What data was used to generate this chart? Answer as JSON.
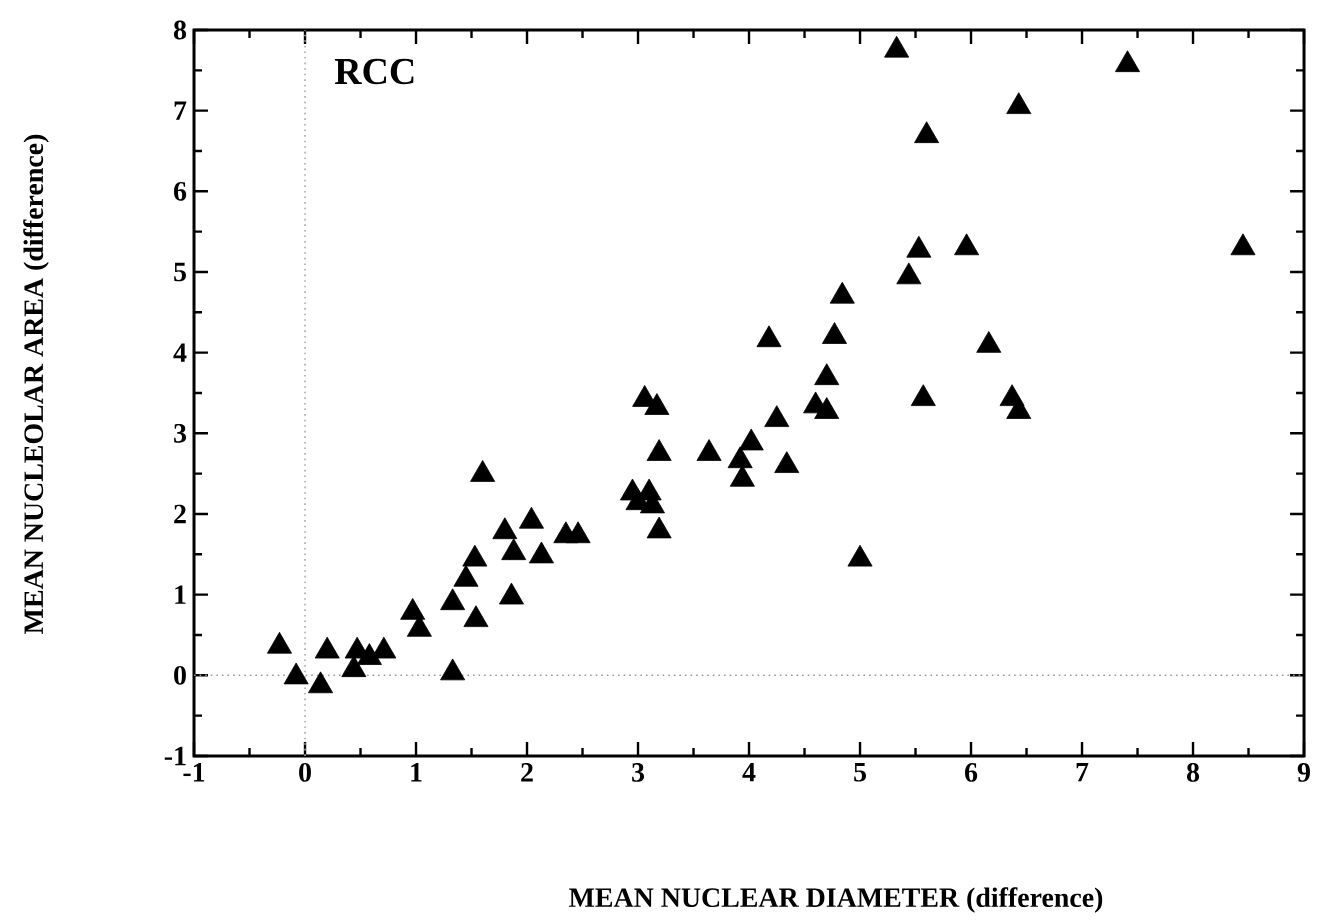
{
  "chart_data": {
    "type": "scatter",
    "xlabel": "MEAN NUCLEAR DIAMETER (difference)",
    "ylabel": "MEAN NUCLEOLAR AREA (difference)",
    "annotations": [
      "RCC"
    ],
    "xlim": [
      -1,
      9
    ],
    "ylim": [
      -1,
      8
    ],
    "xticks": [
      -1,
      0,
      1,
      2,
      3,
      4,
      5,
      6,
      7,
      8,
      9
    ],
    "yticks": [
      -1,
      0,
      1,
      2,
      3,
      4,
      5,
      6,
      7,
      8
    ],
    "ref_lines": [
      {
        "axis": "x",
        "value": 0,
        "line_style": "dotted",
        "color": "#a8a8a8"
      },
      {
        "axis": "y",
        "value": 0,
        "line_style": "dotted",
        "color": "#999999"
      }
    ],
    "marker": "triangle",
    "series": [
      {
        "color": "#000000",
        "x": [
          -0.23,
          -0.08,
          0.14,
          0.2,
          0.47,
          0.44,
          0.58,
          0.71,
          0.97,
          1.03,
          1.33,
          1.33,
          1.54,
          1.45,
          1.53,
          1.6,
          1.86,
          1.8,
          1.88,
          2.04,
          2.13,
          2.35,
          2.46,
          2.95,
          3.1,
          3.0,
          3.13,
          3.19,
          3.06,
          3.17,
          3.19,
          3.64,
          3.92,
          4.02,
          3.94,
          4.25,
          4.34,
          4.18,
          4.77,
          4.84,
          4.7,
          4.6,
          4.7,
          5.0,
          5.53,
          5.44,
          5.96,
          5.57,
          6.16,
          6.37,
          6.43,
          5.33,
          7.41,
          6.43,
          5.6,
          8.45
        ],
        "values": [
          0.36,
          -0.02,
          -0.13,
          0.3,
          0.3,
          0.07,
          0.22,
          0.3,
          0.78,
          0.57,
          0.03,
          0.9,
          0.69,
          1.19,
          1.44,
          2.49,
          0.97,
          1.78,
          1.52,
          1.91,
          1.48,
          1.73,
          1.73,
          2.26,
          2.26,
          2.14,
          2.1,
          1.79,
          3.42,
          3.32,
          2.75,
          2.75,
          2.66,
          2.88,
          2.43,
          3.17,
          2.6,
          4.16,
          4.2,
          4.7,
          3.69,
          3.34,
          3.27,
          1.44,
          5.27,
          4.94,
          5.3,
          3.43,
          4.09,
          3.43,
          3.27,
          7.75,
          7.57,
          7.05,
          6.69,
          5.3
        ]
      }
    ]
  }
}
